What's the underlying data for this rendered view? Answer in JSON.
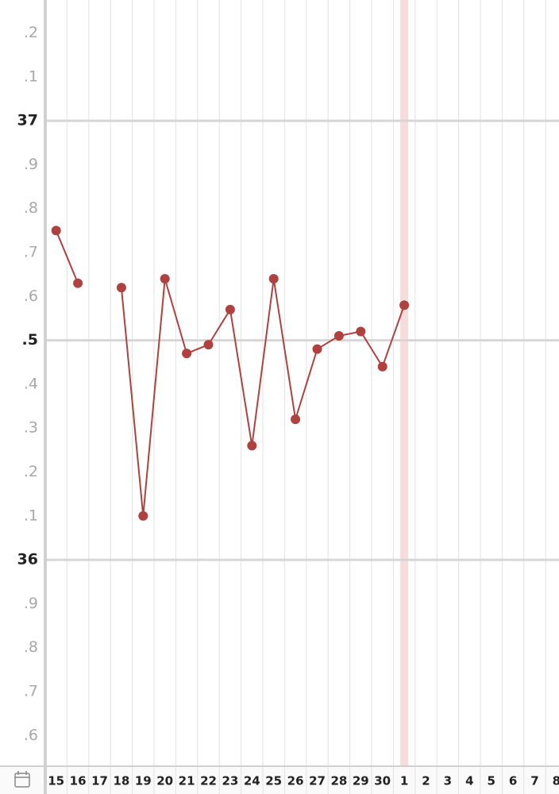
{
  "chart_data": {
    "type": "line",
    "categories": [
      "15",
      "16",
      "17",
      "18",
      "19",
      "20",
      "21",
      "22",
      "23",
      "24",
      "25",
      "26",
      "27",
      "28",
      "29",
      "30",
      "1",
      "2",
      "3",
      "4",
      "5",
      "6",
      "7",
      "8"
    ],
    "category_colors": [
      "#222",
      "#222",
      "#222",
      "#222",
      "#222",
      "#4a90d0",
      "#d0514a",
      "#222",
      "#222",
      "#222",
      "#222",
      "#222",
      "#4a90d0",
      "#d0514a",
      "#222",
      "#222",
      "#222",
      "#222",
      "#222",
      "#4a90d0",
      "#d0514a",
      "#222",
      "#222",
      "#222"
    ],
    "values": [
      36.75,
      36.63,
      null,
      36.62,
      36.1,
      36.64,
      36.47,
      36.49,
      36.57,
      36.26,
      36.64,
      36.32,
      36.48,
      36.51,
      36.52,
      36.44,
      36.58,
      null,
      null,
      null,
      null,
      null,
      null,
      null
    ],
    "color": "#b0413e",
    "highlight_index": 16,
    "highlight_color": "#f7dcdc",
    "ylim": [
      35.53,
      37.275
    ],
    "yticks": [
      {
        "value": 35.6,
        "label": ".6"
      },
      {
        "value": 35.7,
        "label": ".7"
      },
      {
        "value": 35.8,
        "label": ".8"
      },
      {
        "value": 35.9,
        "label": ".9"
      },
      36,
      {
        "value": 36.1,
        "label": ".1"
      },
      {
        "value": 36.2,
        "label": ".2"
      },
      {
        "value": 36.3,
        "label": ".3"
      },
      {
        "value": 36.4,
        "label": ".4"
      },
      {
        "value": 36.5,
        "label": ".5"
      },
      {
        "value": 36.6,
        "label": ".6"
      },
      {
        "value": 36.7,
        "label": ".7"
      },
      {
        "value": 36.8,
        "label": ".8"
      },
      {
        "value": 36.9,
        "label": ".9"
      },
      37,
      {
        "value": 37.1,
        "label": ".1"
      },
      {
        "value": 37.2,
        "label": ".2"
      }
    ],
    "major_yticks": [
      36,
      36.5,
      37
    ],
    "grid": true
  }
}
